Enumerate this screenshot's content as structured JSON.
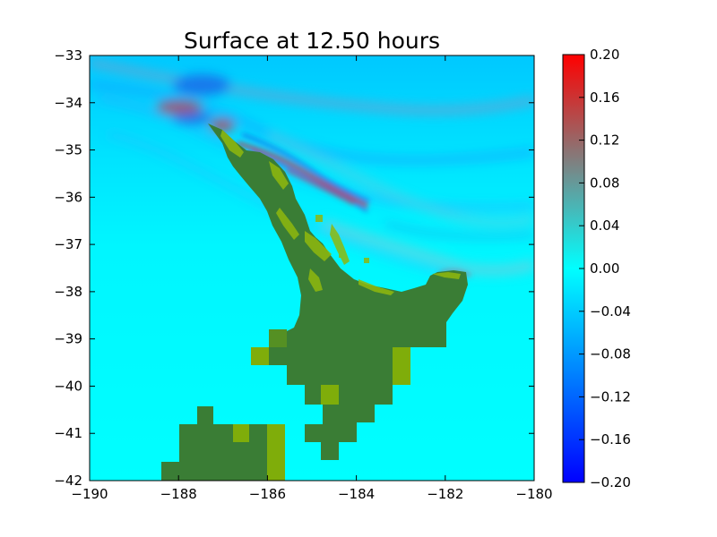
{
  "chart_data": {
    "type": "heatmap",
    "title": "Surface at 12.50 hours",
    "xlabel": "",
    "ylabel": "",
    "xlim": [
      -190,
      -180
    ],
    "ylim": [
      -42,
      -33
    ],
    "xticks": [
      -190,
      -188,
      -186,
      -184,
      -182,
      -180
    ],
    "xtick_labels": [
      "−190",
      "−188",
      "−186",
      "−184",
      "−182",
      "−180"
    ],
    "yticks": [
      -33,
      -34,
      -35,
      -36,
      -37,
      -38,
      -39,
      -40,
      -41,
      -42
    ],
    "ytick_labels": [
      "−33",
      "−34",
      "−35",
      "−36",
      "−37",
      "−38",
      "−39",
      "−40",
      "−41",
      "−42"
    ],
    "grid": false,
    "colorbar": {
      "range": [
        -0.2,
        0.2
      ],
      "ticks": [
        0.2,
        0.16,
        0.12,
        0.08,
        0.04,
        0.0,
        -0.04,
        -0.08,
        -0.12,
        -0.16,
        -0.2
      ],
      "tick_labels": [
        "0.20",
        "0.16",
        "0.12",
        "0.08",
        "0.04",
        "0.00",
        "−0.04",
        "−0.08",
        "−0.12",
        "−0.16",
        "−0.20"
      ],
      "colors": [
        "#0000ff",
        "#00ffff",
        "#ff0000"
      ]
    },
    "colors": {
      "water": "#00f0ff",
      "land": "#3a7d35",
      "land_light": "#7fad0a",
      "negative_anomaly": "#1e6cff",
      "positive_anomaly": "#c05060"
    }
  }
}
